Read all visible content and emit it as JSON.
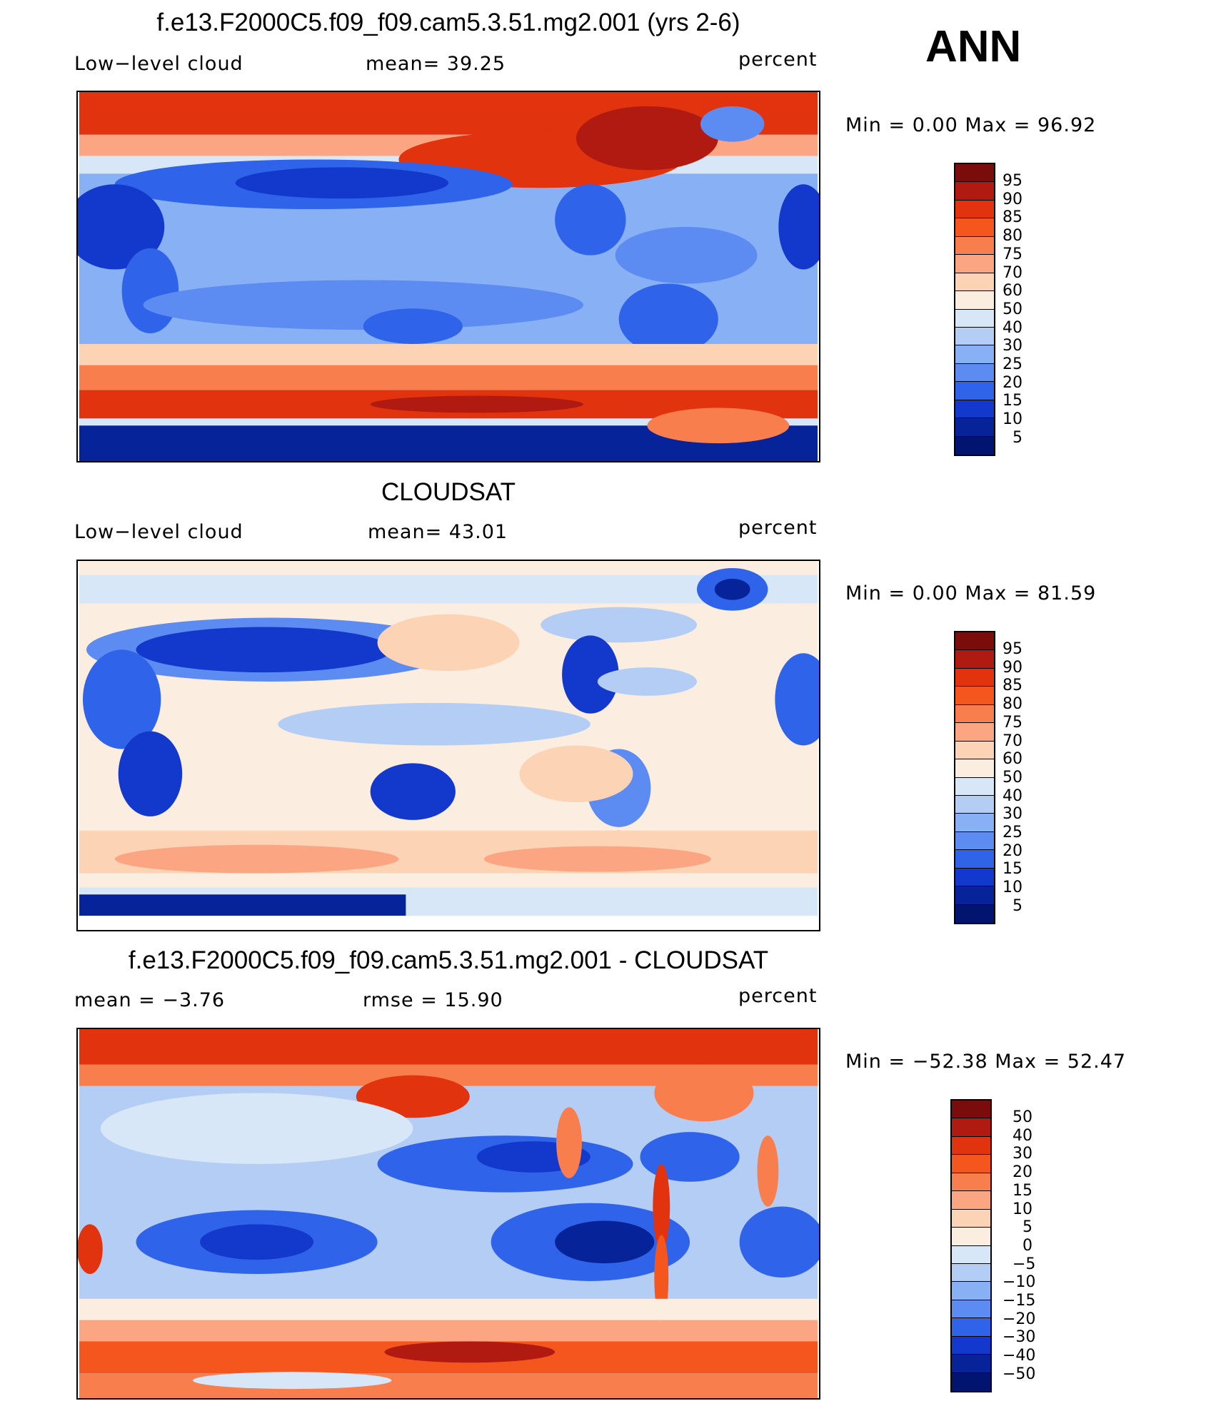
{
  "season": "ANN",
  "panels": [
    {
      "title": "f.e13.F2000C5.f09_f09.cam5.3.51.mg2.001 (yrs 2-6)",
      "left_label": "Low−level cloud",
      "center_label": "mean=   39.25",
      "units": "percent",
      "minmax": "Min  =     0.00  Max  =    96.92",
      "colorbar_labels": [
        "95",
        "90",
        "85",
        "80",
        "75",
        "70",
        "60",
        "50",
        "40",
        "30",
        "25",
        "20",
        "15",
        "10",
        "5"
      ]
    },
    {
      "title": "CLOUDSAT",
      "left_label": "Low−level cloud",
      "center_label": "mean=   43.01",
      "units": "percent",
      "minmax": "Min  =     0.00  Max  =    81.59",
      "colorbar_labels": [
        "95",
        "90",
        "85",
        "80",
        "75",
        "70",
        "60",
        "50",
        "40",
        "30",
        "25",
        "20",
        "15",
        "10",
        "5"
      ]
    },
    {
      "title": "f.e13.F2000C5.f09_f09.cam5.3.51.mg2.001 - CLOUDSAT",
      "left_label": "mean  =    −3.76",
      "center_label": "rmse  =    15.90",
      "units": "percent",
      "minmax": "Min  = −52.38  Max  =    52.47",
      "colorbar_labels": [
        "50",
        "40",
        "30",
        "20",
        "15",
        "10",
        "5",
        "0",
        "−5",
        "−10",
        "−15",
        "−20",
        "−30",
        "−40",
        "−50"
      ]
    }
  ],
  "colors": {
    "scale": [
      "#7a0c0c",
      "#b01a10",
      "#e0330e",
      "#f4561e",
      "#f87e4e",
      "#fba583",
      "#fdd3b5",
      "#fbeee0",
      "#d8e7f8",
      "#b3cdf5",
      "#88b0f5",
      "#5c8cf2",
      "#2f63ea",
      "#1339cc",
      "#06239a",
      "#001470"
    ]
  }
}
